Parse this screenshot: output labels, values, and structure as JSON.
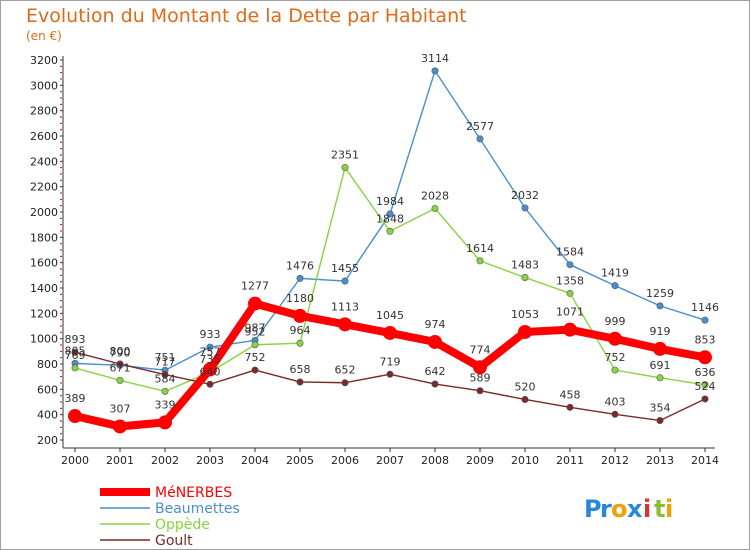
{
  "chart_data": {
    "type": "line",
    "title": "Evolution du Montant de la Dette par Habitant",
    "subtitle": "(en €)",
    "x": [
      "2000",
      "2001",
      "2002",
      "2003",
      "2004",
      "2005",
      "2006",
      "2007",
      "2008",
      "2009",
      "2010",
      "2011",
      "2012",
      "2013",
      "2014"
    ],
    "ylim": [
      200,
      3200
    ],
    "yticks": [
      200,
      400,
      600,
      800,
      1000,
      1200,
      1400,
      1600,
      1800,
      2000,
      2200,
      2400,
      2600,
      2800,
      3000,
      3200
    ],
    "grid": false,
    "legend": "bottom-left",
    "series": [
      {
        "name": "Beaumettes",
        "color": "#4a8ed0",
        "values": [
          805,
          790,
          751,
          933,
          987,
          1476,
          1455,
          1984,
          3114,
          2577,
          2032,
          1584,
          1419,
          1259,
          1146
        ]
      },
      {
        "name": "Oppède",
        "color": "#88d440",
        "values": [
          769,
          671,
          584,
          735,
          952,
          964,
          2351,
          1848,
          2028,
          1614,
          1483,
          1358,
          752,
          691,
          636
        ]
      },
      {
        "name": "Goult",
        "color": "#7a2a2a",
        "values": [
          893,
          800,
          717,
          640,
          752,
          658,
          652,
          719,
          642,
          589,
          520,
          458,
          403,
          354,
          524
        ]
      },
      {
        "name": "MéNERBES",
        "color": "#ff0000",
        "values": [
          389,
          307,
          339,
          757,
          1277,
          1180,
          1113,
          1045,
          974,
          774,
          1053,
          1071,
          999,
          919,
          853
        ]
      }
    ],
    "legend_order": [
      3,
      0,
      1,
      2
    ]
  },
  "logo": {
    "text": "Proxiti",
    "letters": [
      "P",
      "r",
      "o",
      "x",
      "i",
      "t",
      "i"
    ],
    "colors": [
      "#2a86d8",
      "#2a86d8",
      "#f0a000",
      "#2a86d8",
      "#e03030",
      "#88c030",
      "#f0a000"
    ]
  }
}
